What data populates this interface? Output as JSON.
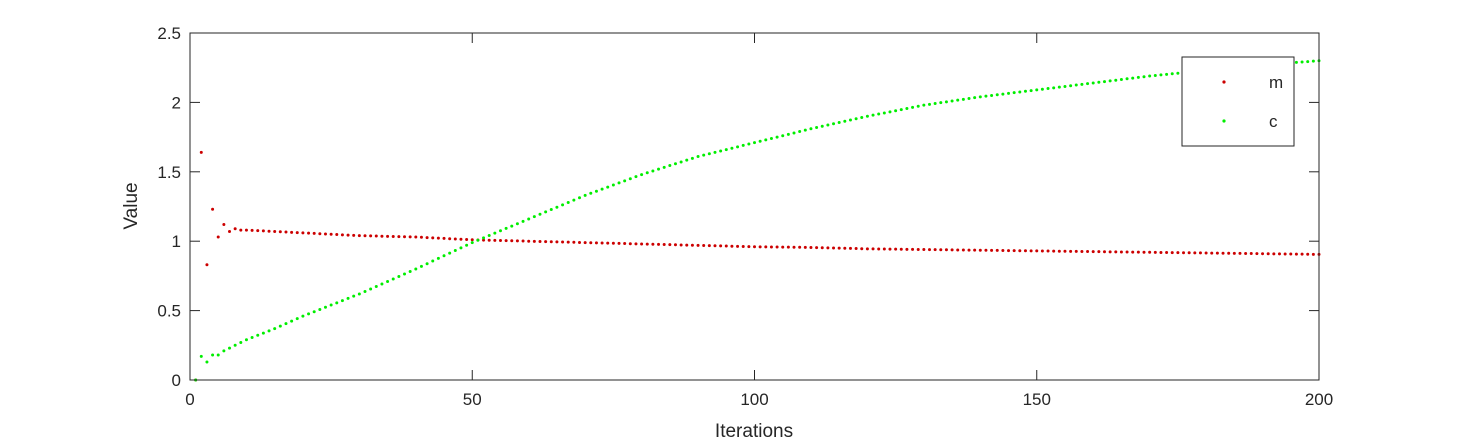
{
  "chart_data": {
    "type": "scatter",
    "xlabel": "Iterations",
    "ylabel": "Value",
    "xlim": [
      0,
      200
    ],
    "ylim": [
      0,
      2.5
    ],
    "xticks": [
      0,
      50,
      100,
      150,
      200
    ],
    "yticks": [
      0,
      0.5,
      1,
      1.5,
      2,
      2.5
    ],
    "xtick_labels": [
      "0",
      "50",
      "100",
      "150",
      "200"
    ],
    "ytick_labels": [
      "0",
      "0.5",
      "1",
      "1.5",
      "2",
      "2.5"
    ],
    "grid": false,
    "legend_position": "top-right",
    "series": [
      {
        "name": "m",
        "color": "#cc0000",
        "x": [
          1,
          2,
          3,
          4,
          5,
          6,
          7,
          8,
          9,
          10,
          15,
          20,
          25,
          30,
          40,
          50,
          60,
          70,
          80,
          90,
          100,
          110,
          120,
          130,
          140,
          150,
          160,
          170,
          180,
          190,
          200
        ],
        "y": [
          0.0,
          1.64,
          0.83,
          1.23,
          1.03,
          1.12,
          1.07,
          1.09,
          1.08,
          1.08,
          1.07,
          1.06,
          1.05,
          1.04,
          1.03,
          1.01,
          1.0,
          0.99,
          0.98,
          0.97,
          0.96,
          0.955,
          0.945,
          0.94,
          0.935,
          0.93,
          0.925,
          0.92,
          0.915,
          0.91,
          0.905
        ]
      },
      {
        "name": "c",
        "color": "#00ee00",
        "x": [
          1,
          2,
          3,
          4,
          5,
          6,
          7,
          8,
          9,
          10,
          15,
          20,
          25,
          30,
          40,
          50,
          60,
          70,
          80,
          90,
          100,
          110,
          120,
          130,
          140,
          150,
          160,
          170,
          180,
          190,
          200
        ],
        "y": [
          0.0,
          0.17,
          0.13,
          0.18,
          0.18,
          0.21,
          0.23,
          0.25,
          0.27,
          0.29,
          0.37,
          0.46,
          0.54,
          0.62,
          0.8,
          0.99,
          1.16,
          1.33,
          1.48,
          1.61,
          1.71,
          1.81,
          1.9,
          1.98,
          2.04,
          2.09,
          2.14,
          2.19,
          2.23,
          2.27,
          2.3
        ]
      }
    ]
  }
}
